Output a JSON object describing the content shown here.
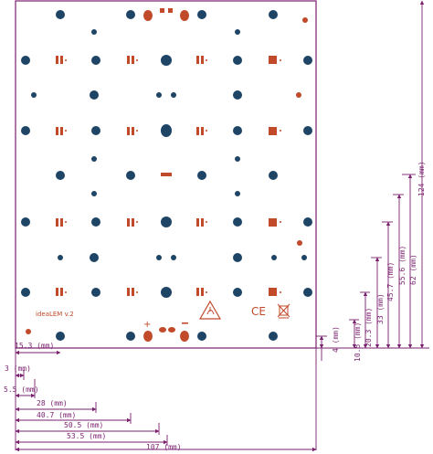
{
  "board": {
    "label": "ideaLEM v.2",
    "ce_mark": "CE",
    "colors": {
      "outline": "#7a1f6e",
      "hole": "#1f4566",
      "pad": "#c04a2a",
      "dimension": "#7a1f6e"
    },
    "icons": [
      "esd-warning-icon",
      "weee-bin-icon"
    ]
  },
  "dimensions": {
    "horizontal": [
      {
        "id": "h-15-3",
        "label": "15.3 (mm)"
      },
      {
        "id": "h-3",
        "label": "3 (mm)"
      },
      {
        "id": "h-5-5",
        "label": "5.5 (mm)"
      },
      {
        "id": "h-28",
        "label": "28 (mm)"
      },
      {
        "id": "h-40-7",
        "label": "40.7 (mm)"
      },
      {
        "id": "h-50-5",
        "label": "50.5 (mm)"
      },
      {
        "id": "h-53-5",
        "label": "53.5 (mm)"
      },
      {
        "id": "h-107",
        "label": "107 (mm)"
      }
    ],
    "vertical": [
      {
        "id": "v-124",
        "label": "124 (mm)"
      },
      {
        "id": "v-62",
        "label": "62 (mm)"
      },
      {
        "id": "v-55-6",
        "label": "55.6 (mm)"
      },
      {
        "id": "v-45-7",
        "label": "45.7 (mm)"
      },
      {
        "id": "v-33",
        "label": "33 (mm)"
      },
      {
        "id": "v-20-3",
        "label": "20.3 (mm)"
      },
      {
        "id": "v-10-5",
        "label": "10.5 (mm)"
      },
      {
        "id": "v-4",
        "label": "4 (mm)"
      }
    ]
  }
}
